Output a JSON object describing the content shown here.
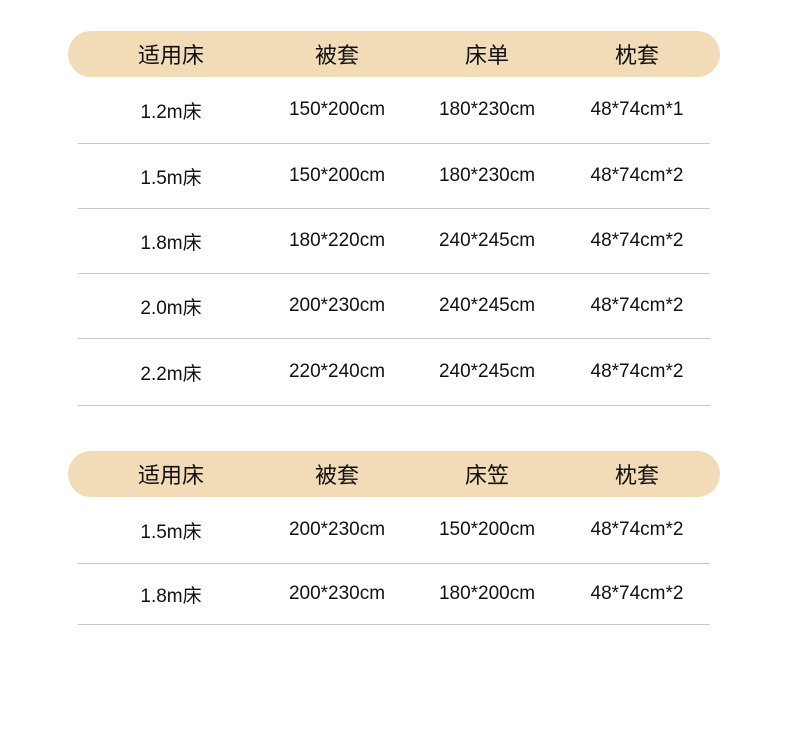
{
  "tables": [
    {
      "headers": [
        "适用床",
        "被套",
        "床单",
        "枕套"
      ],
      "rows": [
        [
          "1.2m床",
          "150*200cm",
          "180*230cm",
          "48*74cm*1"
        ],
        [
          "1.5m床",
          "150*200cm",
          "180*230cm",
          "48*74cm*2"
        ],
        [
          "1.8m床",
          "180*220cm",
          "240*245cm",
          "48*74cm*2"
        ],
        [
          "2.0m床",
          "200*230cm",
          "240*245cm",
          "48*74cm*2"
        ],
        [
          "2.2m床",
          "220*240cm",
          "240*245cm",
          "48*74cm*2"
        ]
      ]
    },
    {
      "headers": [
        "适用床",
        "被套",
        "床笠",
        "枕套"
      ],
      "rows": [
        [
          "1.5m床",
          "200*230cm",
          "150*200cm",
          "48*74cm*2"
        ],
        [
          "1.8m床",
          "200*230cm",
          "180*200cm",
          "48*74cm*2"
        ]
      ]
    }
  ],
  "colors": {
    "header_bg": "#f2dcb7",
    "divider": "#c8c8c8"
  }
}
